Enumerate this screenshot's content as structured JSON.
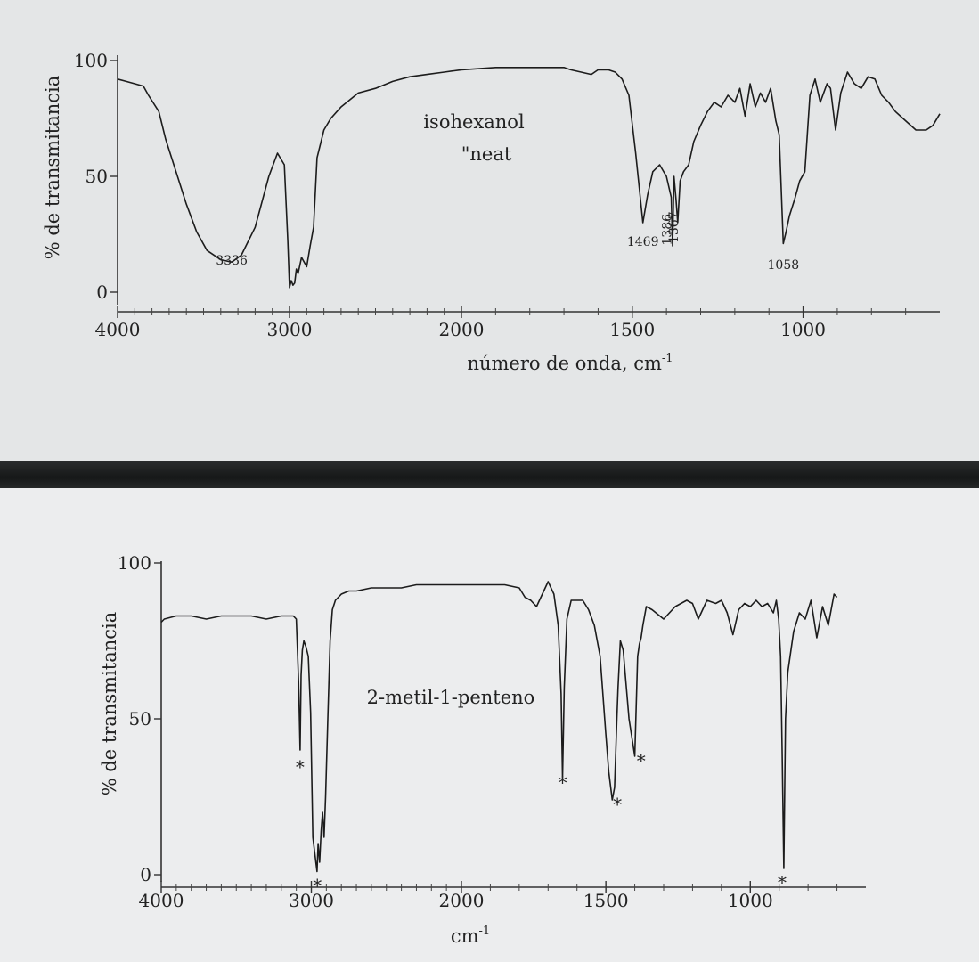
{
  "chart_data": [
    {
      "type": "line",
      "title": "isohexanol",
      "subtitle": "\"neat",
      "xlabel": "número de onda, cm",
      "xlabel_sup": "-1",
      "ylabel": "% de transmitancia",
      "xlim": [
        4000,
        600
      ],
      "ylim": [
        0,
        100
      ],
      "x_ticks": [
        {
          "label": "4000",
          "v": 4000
        },
        {
          "label": "3000",
          "v": 3000
        },
        {
          "label": "2000",
          "v": 2000
        },
        {
          "label": "1500",
          "v": 1500
        },
        {
          "label": "1000",
          "v": 1000
        }
      ],
      "y_ticks": [
        {
          "label": "0",
          "v": 0
        },
        {
          "label": "50",
          "v": 50
        },
        {
          "label": "100",
          "v": 100
        }
      ],
      "annotations": [
        {
          "label": "3336",
          "x": 3336,
          "y": 12,
          "vertical": false
        },
        {
          "label": "1469",
          "x": 1469,
          "y": 20,
          "vertical": false
        },
        {
          "label": "1386",
          "x": 1386,
          "y": 27,
          "vertical": true
        },
        {
          "label": "1367",
          "x": 1367,
          "y": 28,
          "vertical": true
        },
        {
          "label": "1058",
          "x": 1058,
          "y": 10,
          "vertical": false
        }
      ],
      "series": [
        {
          "name": "isohexanol",
          "x": [
            4000,
            3950,
            3850,
            3820,
            3760,
            3720,
            3660,
            3600,
            3540,
            3480,
            3400,
            3336,
            3280,
            3200,
            3120,
            3070,
            3030,
            3010,
            3000,
            2990,
            2980,
            2970,
            2960,
            2950,
            2930,
            2900,
            2880,
            2860,
            2840,
            2800,
            2760,
            2700,
            2600,
            2500,
            2400,
            2300,
            2200,
            2100,
            2000,
            1900,
            1800,
            1700,
            1680,
            1650,
            1620,
            1600,
            1570,
            1550,
            1530,
            1510,
            1490,
            1469,
            1455,
            1440,
            1420,
            1400,
            1386,
            1382,
            1378,
            1372,
            1367,
            1360,
            1350,
            1335,
            1320,
            1300,
            1280,
            1260,
            1240,
            1220,
            1200,
            1185,
            1170,
            1155,
            1140,
            1125,
            1110,
            1095,
            1080,
            1070,
            1058,
            1050,
            1040,
            1025,
            1010,
            995,
            980,
            965,
            950,
            930,
            920,
            905,
            890,
            870,
            850,
            830,
            810,
            790,
            770,
            750,
            730,
            700,
            670,
            640,
            620,
            600
          ],
          "y": [
            92,
            91,
            89,
            85,
            78,
            66,
            52,
            38,
            26,
            18,
            14,
            13,
            16,
            28,
            50,
            60,
            55,
            22,
            2,
            5,
            3,
            4,
            10,
            8,
            15,
            11,
            20,
            28,
            58,
            70,
            75,
            80,
            86,
            88,
            91,
            93,
            94,
            95,
            96,
            97,
            97,
            97,
            96,
            95,
            94,
            96,
            96,
            95,
            92,
            85,
            60,
            30,
            42,
            52,
            55,
            50,
            41,
            20,
            50,
            40,
            30,
            48,
            52,
            55,
            65,
            72,
            78,
            82,
            80,
            85,
            82,
            88,
            76,
            90,
            80,
            86,
            82,
            88,
            74,
            68,
            21,
            26,
            33,
            40,
            48,
            52,
            85,
            92,
            82,
            90,
            88,
            70,
            86,
            95,
            90,
            88,
            93,
            92,
            85,
            82,
            78,
            74,
            70,
            70,
            72,
            77
          ]
        }
      ]
    },
    {
      "type": "line",
      "title": "2-metil-1-penteno",
      "xlabel": "cm",
      "xlabel_sup": "-1",
      "ylabel": "% de transmitancia",
      "xlim": [
        4000,
        600
      ],
      "ylim": [
        0,
        100
      ],
      "x_ticks": [
        {
          "label": "4000",
          "v": 4000
        },
        {
          "label": "3000",
          "v": 3000
        },
        {
          "label": "2000",
          "v": 2000
        },
        {
          "label": "1500",
          "v": 1500
        },
        {
          "label": "1000",
          "v": 1000
        }
      ],
      "y_ticks": [
        {
          "label": "0",
          "v": 0
        },
        {
          "label": "50",
          "v": 50
        },
        {
          "label": "100",
          "v": 100
        }
      ],
      "annotations": [
        {
          "label": "*",
          "x": 3075,
          "y": 36,
          "vertical": false
        },
        {
          "label": "*",
          "x": 2960,
          "y": -2,
          "vertical": false
        },
        {
          "label": "*",
          "x": 1650,
          "y": 31,
          "vertical": false
        },
        {
          "label": "*",
          "x": 1460,
          "y": 24,
          "vertical": false
        },
        {
          "label": "*",
          "x": 1378,
          "y": 38,
          "vertical": false
        },
        {
          "label": "*",
          "x": 890,
          "y": -1,
          "vertical": false
        }
      ],
      "series": [
        {
          "name": "2-metil-1-penteno",
          "x": [
            4000,
            3980,
            3900,
            3800,
            3700,
            3600,
            3500,
            3400,
            3300,
            3200,
            3120,
            3100,
            3085,
            3075,
            3068,
            3060,
            3050,
            3035,
            3020,
            3005,
            2990,
            2970,
            2962,
            2955,
            2945,
            2935,
            2925,
            2915,
            2905,
            2890,
            2875,
            2860,
            2840,
            2800,
            2750,
            2700,
            2600,
            2500,
            2400,
            2300,
            2200,
            2100,
            2000,
            1900,
            1850,
            1800,
            1780,
            1760,
            1740,
            1700,
            1680,
            1665,
            1655,
            1650,
            1644,
            1635,
            1620,
            1600,
            1580,
            1560,
            1540,
            1520,
            1500,
            1490,
            1478,
            1470,
            1462,
            1458,
            1450,
            1440,
            1420,
            1400,
            1390,
            1384,
            1378,
            1372,
            1360,
            1340,
            1300,
            1260,
            1220,
            1200,
            1180,
            1150,
            1120,
            1100,
            1080,
            1060,
            1040,
            1020,
            1000,
            980,
            960,
            940,
            920,
            910,
            902,
            895,
            890,
            884,
            878,
            870,
            850,
            830,
            810,
            790,
            770,
            750,
            730,
            710,
            700
          ],
          "y": [
            81,
            82,
            83,
            83,
            82,
            83,
            83,
            83,
            82,
            83,
            83,
            82,
            62,
            40,
            64,
            72,
            75,
            73,
            70,
            52,
            12,
            4,
            1,
            10,
            4,
            14,
            20,
            12,
            25,
            50,
            75,
            85,
            88,
            90,
            91,
            91,
            92,
            92,
            92,
            93,
            93,
            93,
            93,
            93,
            93,
            92,
            89,
            88,
            86,
            94,
            90,
            80,
            58,
            31,
            60,
            82,
            88,
            88,
            88,
            85,
            80,
            70,
            45,
            33,
            24,
            28,
            50,
            60,
            75,
            72,
            50,
            38,
            70,
            74,
            76,
            80,
            86,
            85,
            82,
            86,
            88,
            87,
            82,
            88,
            87,
            88,
            84,
            77,
            85,
            87,
            86,
            88,
            86,
            87,
            84,
            88,
            82,
            70,
            40,
            2,
            50,
            65,
            78,
            84,
            82,
            88,
            76,
            86,
            80,
            90,
            89
          ]
        }
      ]
    }
  ]
}
